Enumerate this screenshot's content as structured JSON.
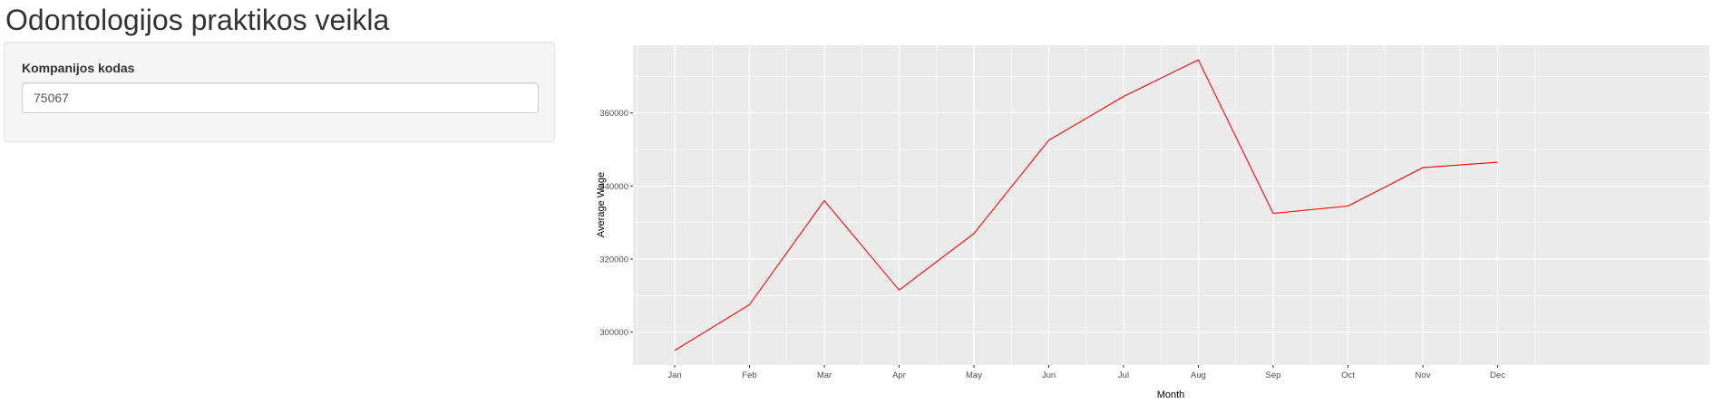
{
  "header": {
    "title": "Odontologijos praktikos veikla"
  },
  "sidebar": {
    "input_label": "Kompanijos kodas",
    "input_value": "75067"
  },
  "chart_data": {
    "type": "line",
    "title": "",
    "xlabel": "Month",
    "ylabel": "Average Wage",
    "categories": [
      "Jan",
      "Feb",
      "Mar",
      "Apr",
      "May",
      "Jun",
      "Jul",
      "Aug",
      "Sep",
      "Oct",
      "Nov",
      "Dec"
    ],
    "series": [
      {
        "values": [
          295000,
          307500,
          336000,
          311500,
          327000,
          352500,
          364500,
          374500,
          332500,
          334500,
          345000,
          346500
        ],
        "color": "#ff0000"
      }
    ],
    "yticks": [
      300000,
      320000,
      340000,
      360000
    ],
    "ytick_labels": [
      "300000",
      "320000",
      "340000",
      "360000"
    ],
    "ylim": [
      291000,
      378500
    ],
    "panel_background": "#ebebeb",
    "grid_color": "#ffffff",
    "grid": true,
    "legend": "none"
  }
}
